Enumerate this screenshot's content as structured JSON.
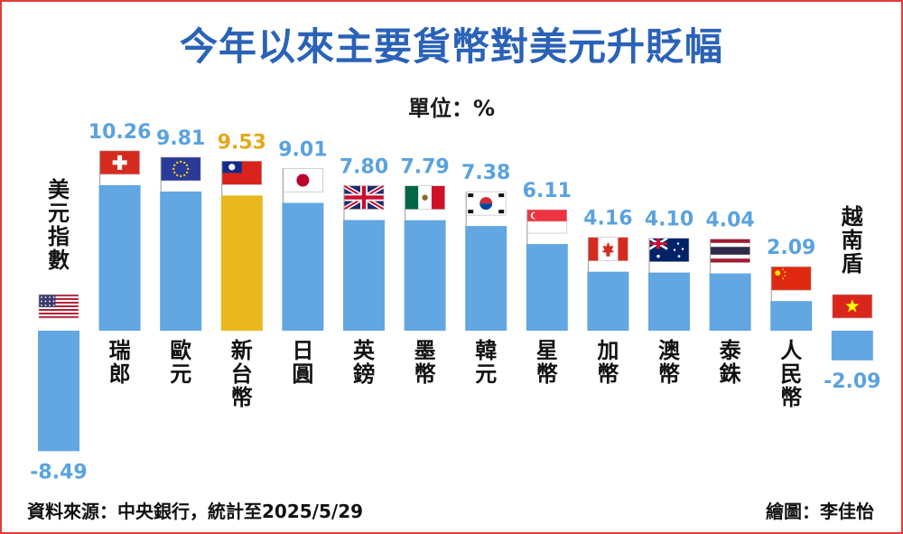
{
  "title": "今年以來主要貨幣對美元升貶幅",
  "unit": "單位：%",
  "source": "資料來源：中央銀行，統計至2025/5/29",
  "credit": "繪圖：李佳怡",
  "colors": {
    "bar": "#62a6e2",
    "highlight": "#e8b81e",
    "value": "#5aa2df",
    "highlight_value": "#e3a91c",
    "frame": "#e23a3a",
    "title": "#2a62b8"
  },
  "chart_data": {
    "type": "bar",
    "title": "今年以來主要貨幣對美元升貶幅",
    "ylabel": "單位：%",
    "categories": [
      "美元指數",
      "瑞郎",
      "歐元",
      "新台幣",
      "日圓",
      "英鎊",
      "墨幣",
      "韓元",
      "星幣",
      "加幣",
      "澳幣",
      "泰銖",
      "人民幣",
      "越南盾"
    ],
    "values": [
      -8.49,
      10.26,
      9.81,
      9.53,
      9.01,
      7.8,
      7.79,
      7.38,
      6.11,
      4.16,
      4.1,
      4.04,
      2.09,
      -2.09
    ],
    "value_labels": [
      "-8.49",
      "10.26",
      "9.81",
      "9.53",
      "9.01",
      "7.80",
      "7.79",
      "7.38",
      "6.11",
      "4.16",
      "4.10",
      "4.04",
      "2.09",
      "-2.09"
    ],
    "highlight": "新台幣",
    "flags": [
      "us-flag-icon",
      "switzerland-flag-icon",
      "eu-flag-icon",
      "taiwan-flag-icon",
      "japan-flag-icon",
      "uk-flag-icon",
      "mexico-flag-icon",
      "korea-flag-icon",
      "singapore-flag-icon",
      "canada-flag-icon",
      "australia-flag-icon",
      "thailand-flag-icon",
      "china-flag-icon",
      "vietnam-flag-icon"
    ],
    "ylim": [
      -8.49,
      10.26
    ],
    "grid": false,
    "legend": "none"
  }
}
